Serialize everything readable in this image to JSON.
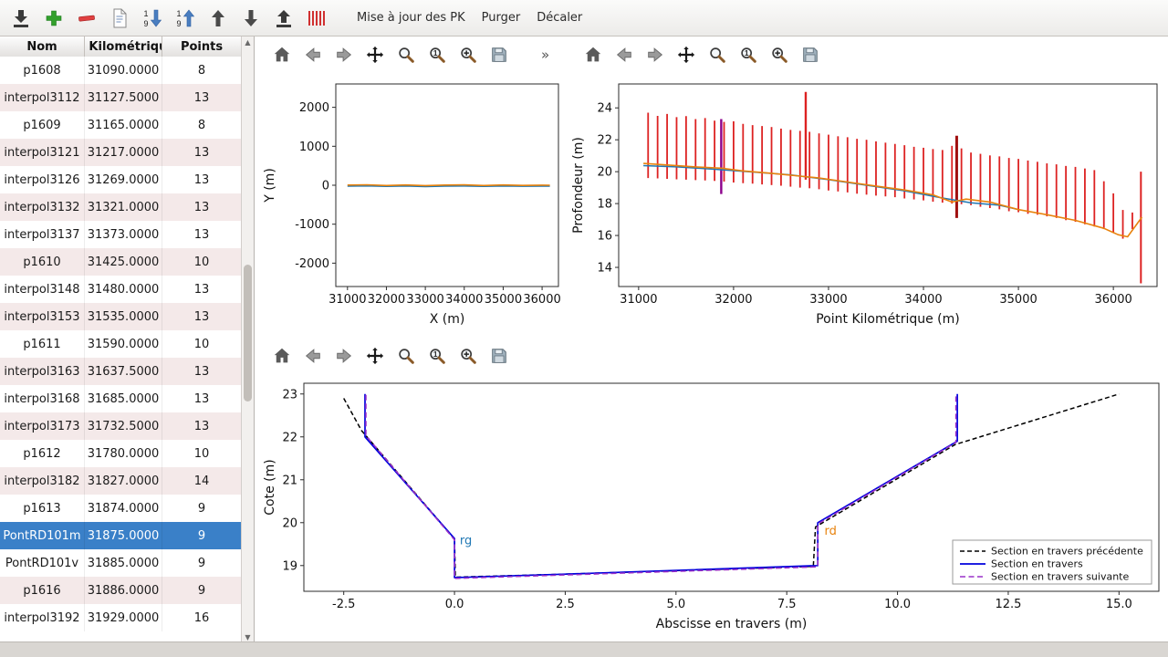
{
  "toolbar": {
    "buttons": [
      {
        "name": "import-button",
        "icon": "tray-down"
      },
      {
        "name": "add-section-button",
        "icon": "plus"
      },
      {
        "name": "delete-section-button",
        "icon": "minus"
      },
      {
        "name": "edit-section-button",
        "icon": "page"
      },
      {
        "name": "sort-descending-button",
        "icon": "sort-desc"
      },
      {
        "name": "sort-ascending-button",
        "icon": "sort-asc"
      },
      {
        "name": "move-up-button",
        "icon": "arrow-up"
      },
      {
        "name": "move-down-button",
        "icon": "arrow-down"
      },
      {
        "name": "export-button",
        "icon": "tray-up"
      },
      {
        "name": "sections-pattern-button",
        "icon": "barcode"
      }
    ],
    "menus": [
      "Mise à jour des PK",
      "Purger",
      "Décaler"
    ]
  },
  "plot_toolbar": {
    "icons": [
      "home",
      "back",
      "forward",
      "pan",
      "zoom",
      "zoom-one",
      "zoom-in",
      "save"
    ],
    "overflow": "»"
  },
  "table": {
    "columns": [
      "Nom",
      "t Kilométriqu",
      "Points"
    ],
    "selected_index": 17,
    "rows": [
      [
        "p1608",
        "31090.0000",
        "8"
      ],
      [
        "interpol3112",
        "31127.5000",
        "13"
      ],
      [
        "p1609",
        "31165.0000",
        "8"
      ],
      [
        "interpol3121",
        "31217.0000",
        "13"
      ],
      [
        "interpol3126",
        "31269.0000",
        "13"
      ],
      [
        "interpol3132",
        "31321.0000",
        "13"
      ],
      [
        "interpol3137",
        "31373.0000",
        "13"
      ],
      [
        "p1610",
        "31425.0000",
        "10"
      ],
      [
        "interpol3148",
        "31480.0000",
        "13"
      ],
      [
        "interpol3153",
        "31535.0000",
        "13"
      ],
      [
        "p1611",
        "31590.0000",
        "10"
      ],
      [
        "interpol3163",
        "31637.5000",
        "13"
      ],
      [
        "interpol3168",
        "31685.0000",
        "13"
      ],
      [
        "interpol3173",
        "31732.5000",
        "13"
      ],
      [
        "p1612",
        "31780.0000",
        "10"
      ],
      [
        "interpol3182",
        "31827.0000",
        "14"
      ],
      [
        "p1613",
        "31874.0000",
        "9"
      ],
      [
        "PontRD101m",
        "31875.0000",
        "9"
      ],
      [
        "PontRD101v",
        "31885.0000",
        "9"
      ],
      [
        "p1616",
        "31886.0000",
        "9"
      ],
      [
        "interpol3192",
        "31929.0000",
        "16"
      ]
    ]
  },
  "colors": {
    "selection": "#3a80c8",
    "bar_red": "#dd2222",
    "orange": "#e8820c",
    "blue": "#1f77b4",
    "section_blue": "#0000dd",
    "section_purple": "#9a30c8"
  },
  "chart_data": [
    {
      "id": "plan",
      "type": "line",
      "title": "",
      "xlabel": "X (m)",
      "ylabel": "Y (m)",
      "xlim": [
        30700,
        36420
      ],
      "ylim": [
        -2600,
        2600
      ],
      "xticks": [
        31000,
        32000,
        33000,
        34000,
        35000,
        36000
      ],
      "yticks": [
        -2000,
        -1000,
        0,
        1000,
        2000
      ],
      "series": [
        {
          "name": "trace-bleu",
          "color": "#1f77b4",
          "width": 1.4,
          "x": [
            31000,
            31500,
            32000,
            32500,
            33000,
            33500,
            34000,
            34500,
            35000,
            35500,
            36000,
            36200
          ],
          "y": [
            -25,
            -18,
            -30,
            -22,
            -35,
            -25,
            -20,
            -30,
            -22,
            -28,
            -25,
            -25
          ]
        },
        {
          "name": "axe-orange",
          "color": "#e8820c",
          "width": 1.6,
          "x": [
            31000,
            31500,
            32000,
            32500,
            33000,
            33500,
            34000,
            34500,
            35000,
            35500,
            36000,
            36200
          ],
          "y": [
            5,
            12,
            -8,
            6,
            -10,
            4,
            10,
            -6,
            8,
            -4,
            2,
            0
          ]
        }
      ]
    },
    {
      "id": "profile",
      "type": "line",
      "title": "",
      "xlabel": "Point Kilométrique (m)",
      "ylabel": "Profondeur (m)",
      "xlim": [
        30790,
        36460
      ],
      "ylim": [
        12.8,
        25.5
      ],
      "xticks": [
        31000,
        32000,
        33000,
        34000,
        35000,
        36000
      ],
      "yticks": [
        14,
        16,
        18,
        20,
        22,
        24
      ],
      "bar_color": "#dd2222",
      "bar_width": 1.8,
      "bars": [
        [
          31100,
          19.6,
          23.7
        ],
        [
          31200,
          19.58,
          23.5
        ],
        [
          31300,
          19.55,
          23.62
        ],
        [
          31400,
          19.52,
          23.42
        ],
        [
          31500,
          19.5,
          23.48
        ],
        [
          31600,
          19.47,
          23.3
        ],
        [
          31700,
          19.45,
          23.36
        ],
        [
          31800,
          19.42,
          23.2
        ],
        [
          31900,
          19.38,
          23.12
        ],
        [
          32000,
          19.32,
          23.16
        ],
        [
          32100,
          19.28,
          23.0
        ],
        [
          32200,
          19.25,
          22.92
        ],
        [
          32300,
          19.2,
          22.86
        ],
        [
          32400,
          19.16,
          22.8
        ],
        [
          32500,
          19.12,
          22.7
        ],
        [
          32600,
          19.06,
          22.62
        ],
        [
          32700,
          19.0,
          22.56
        ],
        [
          32800,
          18.96,
          22.5
        ],
        [
          32900,
          18.9,
          22.4
        ],
        [
          33000,
          18.82,
          22.32
        ],
        [
          33100,
          18.76,
          22.22
        ],
        [
          33200,
          18.7,
          22.16
        ],
        [
          33300,
          18.62,
          22.06
        ],
        [
          33400,
          18.56,
          22.0
        ],
        [
          33500,
          18.5,
          21.9
        ],
        [
          33600,
          18.45,
          21.82
        ],
        [
          33700,
          18.4,
          21.74
        ],
        [
          33800,
          18.32,
          21.66
        ],
        [
          33900,
          18.26,
          21.56
        ],
        [
          34000,
          18.2,
          21.5
        ],
        [
          34100,
          18.12,
          21.42
        ],
        [
          34200,
          18.06,
          21.36
        ],
        [
          34300,
          18.0,
          21.62
        ],
        [
          34400,
          17.96,
          21.46
        ],
        [
          34500,
          17.9,
          21.2
        ],
        [
          34600,
          17.8,
          21.12
        ],
        [
          34700,
          17.72,
          21.02
        ],
        [
          34800,
          17.64,
          20.96
        ],
        [
          34900,
          17.52,
          20.86
        ],
        [
          35000,
          17.46,
          20.8
        ],
        [
          35100,
          17.36,
          20.7
        ],
        [
          35200,
          17.3,
          20.62
        ],
        [
          35300,
          17.2,
          20.52
        ],
        [
          35400,
          17.1,
          20.46
        ],
        [
          35500,
          16.96,
          20.36
        ],
        [
          35600,
          16.86,
          20.3
        ],
        [
          35700,
          16.7,
          20.2
        ],
        [
          35800,
          16.56,
          20.1
        ],
        [
          35900,
          16.4,
          19.4
        ],
        [
          36000,
          16.2,
          18.64
        ],
        [
          36100,
          15.8,
          17.6
        ],
        [
          36200,
          16.4,
          17.44
        ]
      ],
      "special_bars": [
        [
          31870,
          18.6,
          23.3,
          "#8b008b",
          2.4
        ],
        [
          32760,
          19.5,
          25.0,
          "#dd2222",
          2.4
        ],
        [
          34350,
          17.1,
          22.25,
          "#a01010",
          3
        ],
        [
          36290,
          13.0,
          20.0,
          "#dd2222",
          2
        ]
      ],
      "series": [
        {
          "name": "profil-bleu",
          "color": "#1f77b4",
          "width": 1.5,
          "x": [
            31050,
            31400,
            31800,
            32200,
            32600,
            33000,
            33400,
            33800,
            34200,
            34500,
            34800,
            35000
          ],
          "y": [
            20.38,
            20.3,
            20.15,
            19.98,
            19.8,
            19.5,
            19.15,
            18.8,
            18.35,
            18.05,
            17.9,
            17.62
          ]
        },
        {
          "name": "fond-orange",
          "color": "#e8820c",
          "width": 1.6,
          "x": [
            31050,
            31300,
            31600,
            31870,
            32100,
            32400,
            32700,
            32900,
            33200,
            33500,
            33800,
            34100,
            34300,
            34450,
            34700,
            35000,
            35300,
            35600,
            35900,
            36050,
            36150,
            36300
          ],
          "y": [
            20.52,
            20.42,
            20.3,
            20.22,
            20.05,
            19.9,
            19.72,
            19.6,
            19.35,
            19.1,
            18.85,
            18.55,
            18.1,
            18.28,
            18.1,
            17.62,
            17.3,
            16.95,
            16.45,
            16.05,
            15.92,
            17.15
          ]
        }
      ]
    },
    {
      "id": "cross",
      "type": "line",
      "title": "",
      "xlabel": "Abscisse en travers (m)",
      "ylabel": "Cote (m)",
      "xlim": [
        -3.4,
        15.9
      ],
      "ylim": [
        18.4,
        23.25
      ],
      "xticks": [
        -2.5,
        0,
        2.5,
        5,
        7.5,
        10,
        12.5,
        15
      ],
      "xtick_labels": [
        "-2.5",
        "0.0",
        "2.5",
        "5.0",
        "7.5",
        "10.0",
        "12.5",
        "15.0"
      ],
      "yticks": [
        19,
        20,
        21,
        22,
        23
      ],
      "legend_position": "lower right",
      "series": [
        {
          "name": "Section en travers précédente",
          "color": "#000000",
          "dash": "5 3",
          "width": 1.5,
          "legend": true,
          "x": [
            -2.5,
            -2.1,
            0.0,
            0.02,
            2.5,
            8.1,
            8.15,
            11.3,
            15.0
          ],
          "y": [
            22.9,
            22.15,
            19.62,
            18.73,
            18.8,
            18.98,
            19.9,
            21.82,
            23.0
          ]
        },
        {
          "name": "Section en travers",
          "color": "#0000dd",
          "width": 1.7,
          "legend": true,
          "x": [
            -2.02,
            -2.02,
            0.0,
            0.0,
            2.5,
            8.2,
            8.2,
            11.35,
            11.35
          ],
          "y": [
            23.0,
            22.0,
            19.63,
            18.72,
            18.8,
            19.0,
            20.0,
            21.9,
            23.0
          ]
        },
        {
          "name": "Section en travers suivante",
          "color": "#9a30c8",
          "dash": "6 3.5",
          "width": 1.5,
          "legend": true,
          "x": [
            -2.0,
            -2.0,
            0.0,
            0.0,
            2.5,
            8.2,
            8.2,
            11.32,
            11.32
          ],
          "y": [
            22.98,
            22.03,
            19.6,
            18.7,
            18.78,
            18.97,
            19.97,
            21.87,
            22.98
          ]
        }
      ],
      "annotations": [
        {
          "text": "rg",
          "x": 0.12,
          "y": 19.5,
          "color": "#1f77b4"
        },
        {
          "text": "rd",
          "x": 8.35,
          "y": 19.72,
          "color": "#e8820c"
        }
      ]
    }
  ]
}
